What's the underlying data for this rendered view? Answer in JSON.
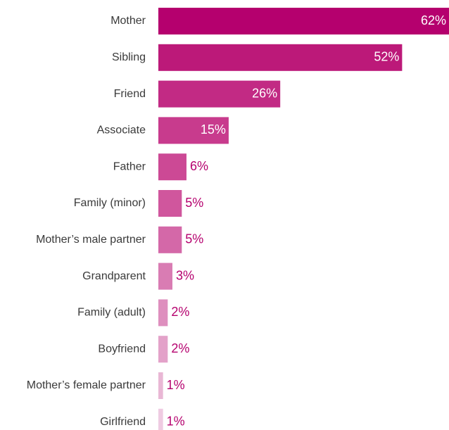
{
  "chart_data": {
    "type": "bar",
    "orientation": "horizontal",
    "categories": [
      "Mother",
      "Sibling",
      "Friend",
      "Associate",
      "Father",
      "Family (minor)",
      "Mother’s male partner",
      "Grandparent",
      "Family (adult)",
      "Boyfriend",
      "Mother’s female partner",
      "Girlfriend"
    ],
    "values": [
      62,
      52,
      26,
      15,
      6,
      5,
      5,
      3,
      2,
      2,
      1,
      1
    ],
    "value_labels": [
      "62%",
      "52%",
      "26%",
      "15%",
      "6%",
      "5%",
      "5%",
      "3%",
      "2%",
      "2%",
      "1%",
      "1%"
    ],
    "colors": [
      "#b5006e",
      "#bc1979",
      "#c22a84",
      "#c83b8d",
      "#cc4995",
      "#d0569d",
      "#d468a8",
      "#d97cb3",
      "#de8fbe",
      "#e3a2c9",
      "#e9b7d5",
      "#efcbe2"
    ],
    "label_color": "#b5006e"
  }
}
